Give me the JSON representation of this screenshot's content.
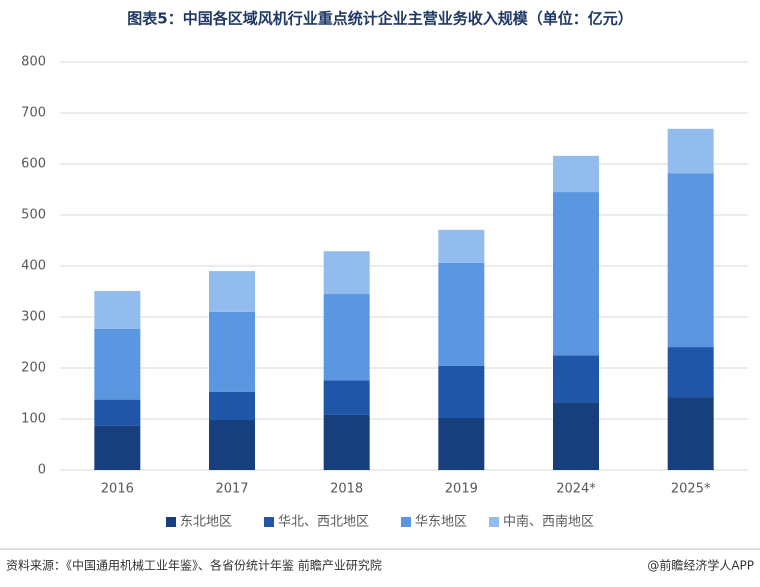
{
  "chart_data": {
    "type": "stacked_bar",
    "title": "图表5：中国各区域风机行业重点统计企业主营业务收入规模（单位：亿元）",
    "categories": [
      "2016",
      "2017",
      "2018",
      "2019",
      "2024*",
      "2025*"
    ],
    "series": [
      {
        "name": "东北地区",
        "color": "#173f7d",
        "values": [
          87,
          98,
          108,
          102,
          133,
          143
        ]
      },
      {
        "name": "华北、西北地区",
        "color": "#1f56a8",
        "values": [
          51,
          55,
          68,
          102,
          92,
          98
        ]
      },
      {
        "name": "华东地区",
        "color": "#5b97e0",
        "values": [
          139,
          157,
          169,
          202,
          320,
          341
        ]
      },
      {
        "name": "中南、西南地区",
        "color": "#93bcee",
        "values": [
          74,
          80,
          84,
          65,
          71,
          87
        ]
      }
    ],
    "ylim": [
      0,
      800
    ],
    "yticks": [
      0,
      100,
      200,
      300,
      400,
      500,
      600,
      700,
      800
    ],
    "grid": true,
    "legend": "bottom"
  },
  "footer": {
    "source": "资料来源：《中国通用机械工业年鉴》、各省份统计年鉴  前瞻产业研究院",
    "brand": "@前瞻经济学人APP"
  }
}
